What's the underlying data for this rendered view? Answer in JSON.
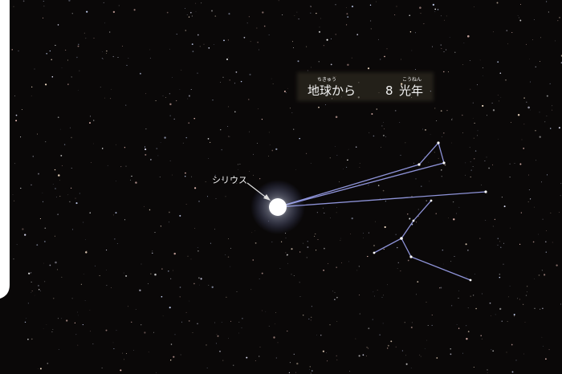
{
  "caption": {
    "ruby_earth": "ちきゅう",
    "from_earth": "地球から",
    "distance": 8,
    "ruby_unit": "こうねん",
    "unit": "光年"
  },
  "star_label": "シリウス"
}
